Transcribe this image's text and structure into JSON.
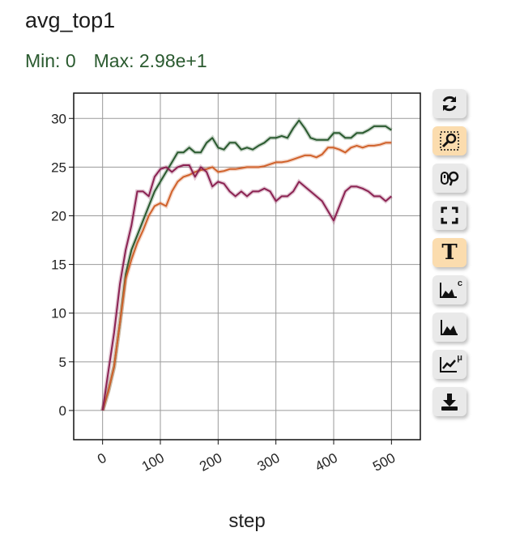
{
  "header": {
    "title": "avg_top1",
    "min_label": "Min: 0",
    "max_label": "Max: 2.98e+1"
  },
  "toolbar": [
    {
      "icon": "refresh-icon",
      "active": false
    },
    {
      "icon": "zoom-box-icon",
      "active": true
    },
    {
      "icon": "wheel-zoom-icon",
      "active": false
    },
    {
      "icon": "fullscreen-icon",
      "active": false
    },
    {
      "icon": "text-icon",
      "active": true,
      "glyph": "T"
    },
    {
      "icon": "area-chart-c-icon",
      "active": false,
      "sup": "c"
    },
    {
      "icon": "area-chart-icon",
      "active": false
    },
    {
      "icon": "trend-mu-icon",
      "active": false,
      "sup": "μ"
    },
    {
      "icon": "download-icon",
      "active": false
    }
  ],
  "chart_data": {
    "type": "line",
    "title": "avg_top1",
    "xlabel": "step",
    "ylabel": "",
    "xlim": [
      -50,
      550
    ],
    "ylim": [
      -3,
      32.6
    ],
    "xticks": [
      0,
      100,
      200,
      300,
      400,
      500
    ],
    "yticks": [
      0,
      5,
      10,
      15,
      20,
      25,
      30
    ],
    "grid": true,
    "series": [
      {
        "name": "green",
        "color": "#2a5a2f",
        "x": [
          0,
          10,
          20,
          30,
          40,
          50,
          60,
          70,
          80,
          90,
          100,
          110,
          120,
          130,
          140,
          150,
          160,
          170,
          180,
          190,
          200,
          210,
          220,
          230,
          240,
          250,
          260,
          270,
          280,
          290,
          300,
          310,
          320,
          330,
          340,
          350,
          360,
          370,
          380,
          390,
          400,
          410,
          420,
          430,
          440,
          450,
          460,
          470,
          480,
          490,
          500
        ],
        "y": [
          0,
          2,
          4.5,
          9,
          14,
          16.5,
          18,
          19.5,
          21,
          22.5,
          23.5,
          24.5,
          25.5,
          26.5,
          26.5,
          27,
          26.5,
          26.5,
          27.5,
          28,
          27,
          26.8,
          27.5,
          27.5,
          26.8,
          27,
          26.8,
          27.2,
          27.5,
          28,
          28,
          28.2,
          28,
          29,
          29.8,
          29,
          28,
          27.8,
          27.8,
          27.8,
          28.5,
          28.5,
          28,
          28,
          28.5,
          28.5,
          28.8,
          29.2,
          29.2,
          29.2,
          28.8
        ]
      },
      {
        "name": "orange",
        "color": "#d0612a",
        "x": [
          0,
          10,
          20,
          30,
          40,
          50,
          60,
          70,
          80,
          90,
          100,
          110,
          120,
          130,
          140,
          150,
          160,
          170,
          180,
          190,
          200,
          210,
          220,
          230,
          240,
          250,
          260,
          270,
          280,
          290,
          300,
          310,
          320,
          330,
          340,
          350,
          360,
          370,
          380,
          390,
          400,
          410,
          420,
          430,
          440,
          450,
          460,
          470,
          480,
          490,
          500
        ],
        "y": [
          0,
          2,
          4.5,
          9,
          13.5,
          15.5,
          17.2,
          18.5,
          20,
          21,
          21.3,
          21,
          22.5,
          23.5,
          24,
          24.2,
          24.5,
          24.7,
          24.8,
          25,
          24.5,
          24.6,
          24.8,
          24.8,
          24.9,
          25,
          25,
          25,
          25.1,
          25.3,
          25.5,
          25.5,
          25.6,
          25.8,
          26,
          26.2,
          26.2,
          26,
          26.3,
          27,
          27,
          26.8,
          26.5,
          27,
          27.2,
          27,
          27.2,
          27.2,
          27.3,
          27.5,
          27.5
        ]
      },
      {
        "name": "crimson",
        "color": "#8b2252",
        "x": [
          0,
          10,
          20,
          30,
          40,
          50,
          60,
          70,
          80,
          90,
          100,
          110,
          120,
          130,
          140,
          150,
          160,
          170,
          180,
          190,
          200,
          210,
          220,
          230,
          240,
          250,
          260,
          270,
          280,
          290,
          300,
          310,
          320,
          330,
          340,
          350,
          360,
          370,
          380,
          390,
          400,
          410,
          420,
          430,
          440,
          450,
          460,
          470,
          480,
          490,
          500
        ],
        "y": [
          0,
          4,
          8,
          13,
          16.5,
          19,
          22.5,
          22.5,
          22,
          24,
          24.8,
          25,
          24.5,
          25,
          25.2,
          25.2,
          24,
          25,
          24.5,
          23,
          23.5,
          23.3,
          22.5,
          22,
          22.5,
          22,
          22.5,
          22.5,
          22.8,
          22.5,
          21.5,
          22,
          22,
          22.5,
          23.5,
          23,
          22.5,
          22,
          21.5,
          20.5,
          19.5,
          21,
          22.5,
          23,
          23,
          22.8,
          22.5,
          22,
          22,
          21.5,
          22
        ]
      }
    ]
  }
}
